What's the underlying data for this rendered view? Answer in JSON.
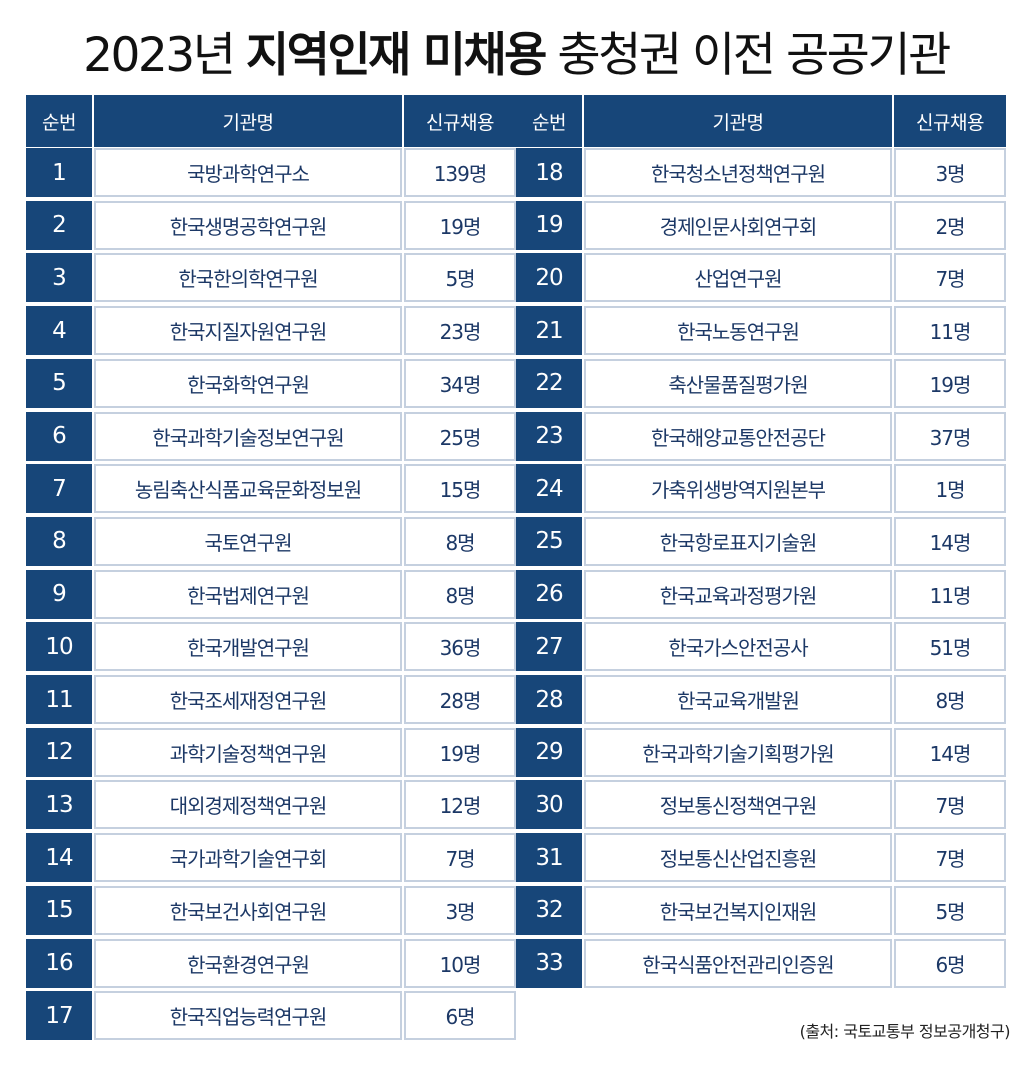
{
  "title": {
    "part1": "2023년 ",
    "bold": "지역인재 미채용",
    "part2": " 충청권 이전 공공기관"
  },
  "headers": {
    "rank": "순번",
    "name": "기관명",
    "hires": "신규채용"
  },
  "left_rows": [
    {
      "rank": "1",
      "name": "국방과학연구소",
      "hires": "139명"
    },
    {
      "rank": "2",
      "name": "한국생명공학연구원",
      "hires": "19명"
    },
    {
      "rank": "3",
      "name": "한국한의학연구원",
      "hires": "5명"
    },
    {
      "rank": "4",
      "name": "한국지질자원연구원",
      "hires": "23명"
    },
    {
      "rank": "5",
      "name": "한국화학연구원",
      "hires": "34명"
    },
    {
      "rank": "6",
      "name": "한국과학기술정보연구원",
      "hires": "25명"
    },
    {
      "rank": "7",
      "name": "농림축산식품교육문화정보원",
      "hires": "15명"
    },
    {
      "rank": "8",
      "name": "국토연구원",
      "hires": "8명"
    },
    {
      "rank": "9",
      "name": "한국법제연구원",
      "hires": "8명"
    },
    {
      "rank": "10",
      "name": "한국개발연구원",
      "hires": "36명"
    },
    {
      "rank": "11",
      "name": "한국조세재정연구원",
      "hires": "28명"
    },
    {
      "rank": "12",
      "name": "과학기술정책연구원",
      "hires": "19명"
    },
    {
      "rank": "13",
      "name": "대외경제정책연구원",
      "hires": "12명"
    },
    {
      "rank": "14",
      "name": "국가과학기술연구회",
      "hires": "7명"
    },
    {
      "rank": "15",
      "name": "한국보건사회연구원",
      "hires": "3명"
    },
    {
      "rank": "16",
      "name": "한국환경연구원",
      "hires": "10명"
    },
    {
      "rank": "17",
      "name": "한국직업능력연구원",
      "hires": "6명"
    }
  ],
  "right_rows": [
    {
      "rank": "18",
      "name": "한국청소년정책연구원",
      "hires": "3명"
    },
    {
      "rank": "19",
      "name": "경제인문사회연구회",
      "hires": "2명"
    },
    {
      "rank": "20",
      "name": "산업연구원",
      "hires": "7명"
    },
    {
      "rank": "21",
      "name": "한국노동연구원",
      "hires": "11명"
    },
    {
      "rank": "22",
      "name": "축산물품질평가원",
      "hires": "19명"
    },
    {
      "rank": "23",
      "name": "한국해양교통안전공단",
      "hires": "37명"
    },
    {
      "rank": "24",
      "name": "가축위생방역지원본부",
      "hires": "1명"
    },
    {
      "rank": "25",
      "name": "한국항로표지기술원",
      "hires": "14명"
    },
    {
      "rank": "26",
      "name": "한국교육과정평가원",
      "hires": "11명"
    },
    {
      "rank": "27",
      "name": "한국가스안전공사",
      "hires": "51명"
    },
    {
      "rank": "28",
      "name": "한국교육개발원",
      "hires": "8명"
    },
    {
      "rank": "29",
      "name": "한국과학기술기획평가원",
      "hires": "14명"
    },
    {
      "rank": "30",
      "name": "정보통신정책연구원",
      "hires": "7명"
    },
    {
      "rank": "31",
      "name": "정보통신산업진흥원",
      "hires": "7명"
    },
    {
      "rank": "32",
      "name": "한국보건복지인재원",
      "hires": "5명"
    },
    {
      "rank": "33",
      "name": "한국식품안전관리인증원",
      "hires": "6명"
    }
  ],
  "source": "(출처: 국토교통부 정보공개청구)",
  "colors": {
    "header_bg": "#174679",
    "cell_border": "#c5d0df",
    "text": "#1c3866"
  }
}
